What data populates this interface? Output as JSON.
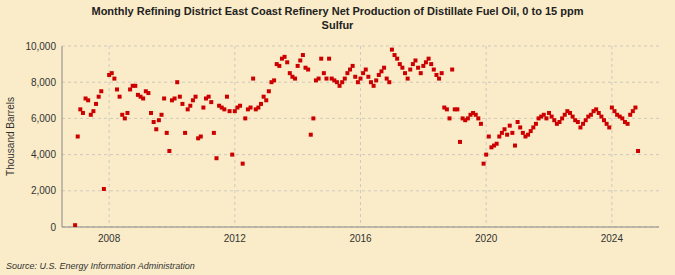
{
  "chart_data": {
    "type": "scatter",
    "title": "Monthly Refining District East Coast Refinery Net Production of Distillate Fuel Oil, 0 to 15 ppm\nSulfur",
    "y_label": "Thousand Barrels",
    "source": "Source: U.S. Energy Information Administration",
    "color": "#cc0000",
    "grid": true,
    "xlim": [
      2006.5,
      2025.5
    ],
    "xticks": [
      2008,
      2012,
      2016,
      2020,
      2024
    ],
    "ylim": [
      0,
      10000
    ],
    "yticks": [
      0,
      {
        "value": 2000,
        "label": "2,000"
      },
      {
        "value": 4000,
        "label": "4,000"
      },
      {
        "value": 6000,
        "label": "6,000"
      },
      {
        "value": 8000,
        "label": "8,000"
      },
      {
        "value": 10000,
        "label": "10,000"
      }
    ],
    "x": [
      2006.917,
      2007.0,
      2007.083,
      2007.167,
      2007.25,
      2007.333,
      2007.417,
      2007.5,
      2007.583,
      2007.667,
      2007.75,
      2007.833,
      2008.0,
      2008.083,
      2008.167,
      2008.25,
      2008.333,
      2008.417,
      2008.5,
      2008.583,
      2008.667,
      2008.75,
      2008.833,
      2008.917,
      2009.0,
      2009.083,
      2009.167,
      2009.25,
      2009.333,
      2009.417,
      2009.5,
      2009.583,
      2009.667,
      2009.75,
      2009.833,
      2009.917,
      2010.0,
      2010.083,
      2010.167,
      2010.25,
      2010.333,
      2010.417,
      2010.5,
      2010.583,
      2010.667,
      2010.75,
      2010.833,
      2010.917,
      2011.0,
      2011.083,
      2011.167,
      2011.25,
      2011.333,
      2011.417,
      2011.5,
      2011.583,
      2011.667,
      2011.75,
      2011.833,
      2011.917,
      2012.0,
      2012.083,
      2012.167,
      2012.25,
      2012.333,
      2012.417,
      2012.5,
      2012.583,
      2012.667,
      2012.75,
      2012.833,
      2012.917,
      2013.0,
      2013.083,
      2013.167,
      2013.25,
      2013.333,
      2013.417,
      2013.5,
      2013.583,
      2013.667,
      2013.75,
      2013.833,
      2013.917,
      2014.0,
      2014.083,
      2014.167,
      2014.25,
      2014.333,
      2014.417,
      2014.5,
      2014.583,
      2014.667,
      2014.75,
      2014.833,
      2014.917,
      2015.0,
      2015.083,
      2015.167,
      2015.25,
      2015.333,
      2015.417,
      2015.5,
      2015.583,
      2015.667,
      2015.75,
      2015.833,
      2015.917,
      2016.0,
      2016.083,
      2016.167,
      2016.25,
      2016.333,
      2016.417,
      2016.5,
      2016.583,
      2016.667,
      2016.75,
      2016.833,
      2016.917,
      2017.0,
      2017.083,
      2017.167,
      2017.25,
      2017.333,
      2017.417,
      2017.5,
      2017.583,
      2017.667,
      2017.75,
      2017.833,
      2017.917,
      2018.0,
      2018.083,
      2018.167,
      2018.25,
      2018.333,
      2018.417,
      2018.5,
      2018.583,
      2018.667,
      2018.75,
      2018.833,
      2018.917,
      2019.0,
      2019.083,
      2019.167,
      2019.25,
      2019.333,
      2019.417,
      2019.5,
      2019.583,
      2019.667,
      2019.75,
      2019.833,
      2019.917,
      2020.0,
      2020.083,
      2020.167,
      2020.25,
      2020.333,
      2020.417,
      2020.5,
      2020.583,
      2020.667,
      2020.75,
      2020.833,
      2020.917,
      2021.0,
      2021.083,
      2021.167,
      2021.25,
      2021.333,
      2021.417,
      2021.5,
      2021.583,
      2021.667,
      2021.75,
      2021.833,
      2021.917,
      2022.0,
      2022.083,
      2022.167,
      2022.25,
      2022.333,
      2022.417,
      2022.5,
      2022.583,
      2022.667,
      2022.75,
      2022.833,
      2022.917,
      2023.0,
      2023.083,
      2023.167,
      2023.25,
      2023.333,
      2023.417,
      2023.5,
      2023.583,
      2023.667,
      2023.75,
      2023.833,
      2023.917,
      2024.0,
      2024.083,
      2024.167,
      2024.25,
      2024.333,
      2024.417,
      2024.5,
      2024.583,
      2024.667,
      2024.75,
      2024.833
    ],
    "values": [
      100,
      5000,
      6500,
      6300,
      7100,
      7000,
      6200,
      6400,
      6800,
      7200,
      7500,
      2100,
      8400,
      8500,
      8200,
      7600,
      7200,
      6200,
      6000,
      6300,
      7600,
      7800,
      7800,
      7300,
      7200,
      7100,
      7500,
      7400,
      6300,
      5800,
      5400,
      5900,
      6200,
      7100,
      5200,
      4200,
      7000,
      7100,
      8000,
      7200,
      6800,
      5200,
      6500,
      6700,
      7000,
      7200,
      4900,
      5000,
      6600,
      7100,
      7200,
      6900,
      5200,
      3800,
      6700,
      6600,
      6500,
      7200,
      6400,
      4000,
      6400,
      6600,
      6700,
      3500,
      6000,
      6500,
      6600,
      8200,
      6500,
      6600,
      6800,
      7200,
      7000,
      7500,
      8000,
      8100,
      9000,
      8900,
      9300,
      9400,
      9100,
      8500,
      8300,
      8200,
      8900,
      9200,
      9500,
      8800,
      8700,
      5100,
      6000,
      8100,
      8200,
      9300,
      8500,
      8200,
      9300,
      8200,
      8100,
      8000,
      7800,
      8000,
      8200,
      8500,
      8700,
      8900,
      8300,
      8000,
      8200,
      8500,
      8700,
      8300,
      8000,
      7800,
      8100,
      8400,
      8600,
      8800,
      8200,
      8000,
      9800,
      9500,
      9300,
      9000,
      8800,
      8500,
      8200,
      8700,
      9000,
      9200,
      8800,
      8500,
      8900,
      9100,
      9300,
      9000,
      8700,
      8400,
      8200,
      8500,
      6600,
      6500,
      6000,
      8700,
      6500,
      6500,
      4700,
      6000,
      5900,
      6000,
      6200,
      6300,
      6200,
      6000,
      5700,
      3500,
      4000,
      5000,
      4400,
      4500,
      4600,
      5000,
      5200,
      5400,
      5100,
      5600,
      5200,
      4500,
      5800,
      5500,
      5200,
      5000,
      5100,
      5300,
      5500,
      5700,
      6000,
      6100,
      6200,
      6000,
      6300,
      6100,
      5900,
      5700,
      5800,
      6000,
      6200,
      6400,
      6300,
      6100,
      5900,
      5800,
      5500,
      5700,
      5900,
      6100,
      6200,
      6400,
      6500,
      6300,
      6100,
      5900,
      5700,
      5500,
      6600,
      6400,
      6200,
      6100,
      6000,
      5800,
      5700,
      6200,
      6400,
      6600,
      4200
    ]
  }
}
